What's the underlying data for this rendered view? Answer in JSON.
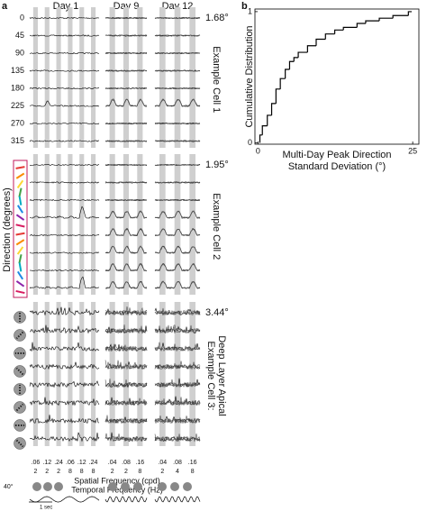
{
  "panel_a": {
    "label": "a",
    "columns": [
      {
        "title": "Day 1",
        "sf": [
          ".06",
          ".12",
          ".24",
          ".06",
          ".12",
          ".24"
        ],
        "tf": [
          "2",
          "2",
          "2",
          "8",
          "8",
          "8"
        ]
      },
      {
        "title": "Day 9",
        "sf": [
          ".04",
          ".08",
          ".16"
        ],
        "tf": [
          "2",
          "2",
          "8"
        ]
      },
      {
        "title": "Day 12",
        "sf": [
          ".04",
          ".08",
          ".16"
        ],
        "tf": [
          "2",
          "4",
          "8"
        ]
      }
    ],
    "directions": [
      "0",
      "45",
      "90",
      "135",
      "180",
      "225",
      "270",
      "315"
    ],
    "cells": [
      {
        "deviation": "1.68°",
        "name": [
          "Example Cell 1"
        ]
      },
      {
        "deviation": "1.95°",
        "name": [
          "Example Cell 2"
        ]
      },
      {
        "deviation": "3.44°",
        "name": [
          "Example Cell 3:",
          "Deep Layer Apical"
        ]
      }
    ],
    "y_label": "Direction (degrees)",
    "x_label": "Spatial Frequency (cpd)",
    "x_label2": "Temporal Frequency (Hz)",
    "stim_size": "40°",
    "time_scale": "1 sec"
  },
  "chart_data": {
    "type": "line",
    "label": "b",
    "drawstyle": "steps-post",
    "ylabel": "Cumulative Distribution",
    "xlabel": [
      "Multi-Day Peak Direction",
      "Standard Deviation (°)"
    ],
    "x": [
      0.3,
      0.7,
      1.5,
      2.2,
      2.9,
      3.6,
      4.4,
      5.1,
      5.8,
      6.5,
      8.0,
      9.4,
      10.9,
      12.4,
      13.8,
      16.0,
      17.4,
      19.6,
      21.8,
      24.3
    ],
    "series": [
      {
        "color": "#000000",
        "values": [
          0.06,
          0.13,
          0.21,
          0.3,
          0.41,
          0.49,
          0.56,
          0.62,
          0.65,
          0.69,
          0.74,
          0.79,
          0.83,
          0.86,
          0.88,
          0.91,
          0.93,
          0.95,
          0.97,
          1
        ]
      }
    ],
    "xlim": [
      -0.5,
      26
    ],
    "ylim": [
      -0.01,
      1.02
    ],
    "xticks": [
      0,
      25
    ],
    "yticks": [
      0,
      1
    ]
  }
}
